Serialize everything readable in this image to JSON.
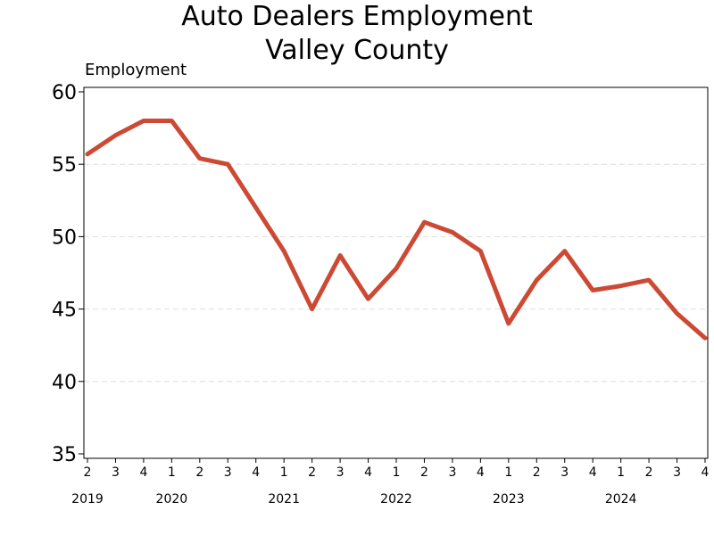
{
  "chart_data": {
    "type": "line",
    "title": "Auto Dealers Employment",
    "subtitle": "Valley County",
    "ylabel": "Employment",
    "xlabel": "",
    "ylim": [
      35,
      60
    ],
    "yticks": [
      35,
      40,
      45,
      50,
      55,
      60
    ],
    "grid": "horizontal dashed",
    "line_color": "#cc4a33",
    "quarter_labels": [
      "2",
      "3",
      "4",
      "1",
      "2",
      "3",
      "4",
      "1",
      "2",
      "3",
      "4",
      "1",
      "2",
      "3",
      "4",
      "1",
      "2",
      "3",
      "4",
      "1",
      "2",
      "3",
      "4"
    ],
    "year_labels": [
      {
        "label": "2019",
        "at_index": 0
      },
      {
        "label": "2020",
        "at_index": 3
      },
      {
        "label": "2021",
        "at_index": 7
      },
      {
        "label": "2022",
        "at_index": 11
      },
      {
        "label": "2023",
        "at_index": 15
      },
      {
        "label": "2024",
        "at_index": 19
      }
    ],
    "series": [
      {
        "x": [
          "2019Q2",
          "2019Q3",
          "2019Q4",
          "2020Q1",
          "2020Q2",
          "2020Q3",
          "2020Q4",
          "2021Q1",
          "2021Q2",
          "2021Q3",
          "2021Q4",
          "2022Q1",
          "2022Q2",
          "2022Q3",
          "2022Q4",
          "2023Q1",
          "2023Q2",
          "2023Q3",
          "2023Q4",
          "2024Q1",
          "2024Q2",
          "2024Q3",
          "2024Q4"
        ],
        "values": [
          55.7,
          57.0,
          58.0,
          58.0,
          55.4,
          55.0,
          52.0,
          49.0,
          45.0,
          48.7,
          45.7,
          47.8,
          51.0,
          50.3,
          49.0,
          44.0,
          47.0,
          49.0,
          46.3,
          46.6,
          47.0,
          44.7,
          43.0
        ]
      }
    ]
  }
}
